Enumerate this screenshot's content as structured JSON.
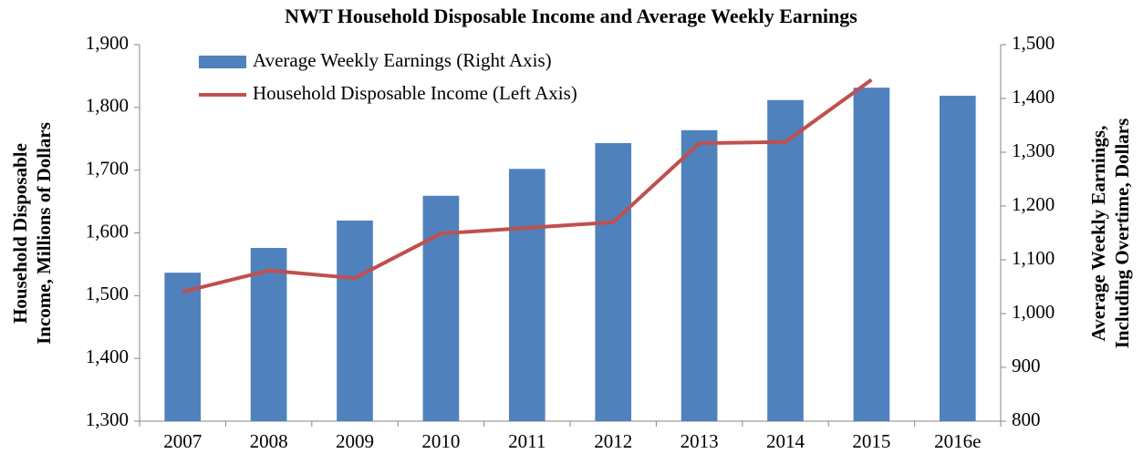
{
  "chart_data": {
    "type": "bar_line",
    "title": "NWT Household Disposable Income and Average Weekly Earnings",
    "ylabel": [
      "Household Disposable",
      "Income, Millions of Dollars"
    ],
    "y2label": [
      "Average Weekly Earnings,",
      "Including Overtime, Dollars"
    ],
    "categories": [
      "2007",
      "2008",
      "2009",
      "2010",
      "2011",
      "2012",
      "2013",
      "2014",
      "2015",
      "2016e"
    ],
    "series": [
      {
        "name": "Average Weekly Earnings (Right Axis)",
        "type": "bar",
        "axis": "y2",
        "color": "#4f81bd",
        "values": [
          1076,
          1122,
          1173,
          1219,
          1269,
          1317,
          1341,
          1397,
          1420,
          1405
        ]
      },
      {
        "name": "Household Disposable Income (Left Axis)",
        "type": "line",
        "axis": "y",
        "color": "#c0504d",
        "values": [
          1506,
          1540,
          1528,
          1599,
          1608,
          1617,
          1743,
          1745,
          1844,
          null
        ]
      }
    ],
    "ylim": [
      1300,
      1900
    ],
    "yticks": [
      {
        "value": 1300,
        "label": "1,300"
      },
      {
        "value": 1400,
        "label": "1,400"
      },
      {
        "value": 1500,
        "label": "1,500"
      },
      {
        "value": 1600,
        "label": "1,600"
      },
      {
        "value": 1700,
        "label": "1,700"
      },
      {
        "value": 1800,
        "label": "1,800"
      },
      {
        "value": 1900,
        "label": "1,900"
      }
    ],
    "y2lim": [
      800,
      1500
    ],
    "y2ticks": [
      800,
      900,
      {
        "value": 1000,
        "label": "1,000"
      },
      {
        "value": 1100,
        "label": "1,100"
      },
      {
        "value": 1200,
        "label": "1,200"
      },
      {
        "value": 1300,
        "label": "1,300"
      },
      {
        "value": 1400,
        "label": "1,400"
      },
      {
        "value": 1500,
        "label": "1,500"
      }
    ],
    "grid": false,
    "legend": "top-left"
  }
}
